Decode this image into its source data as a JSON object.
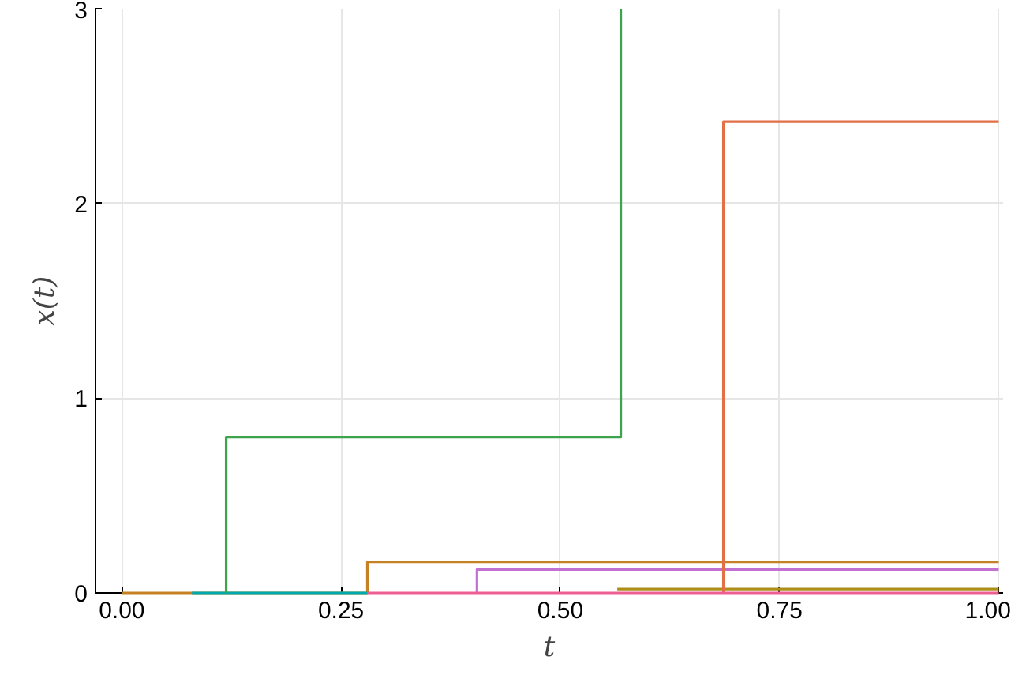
{
  "chart_data": {
    "type": "step",
    "xlabel": "t",
    "ylabel": "x(t)",
    "xlim": [
      -0.03,
      1.005
    ],
    "ylim": [
      0,
      3
    ],
    "xticks": [
      {
        "value": 0,
        "label": "0.00"
      },
      {
        "value": 0.25,
        "label": "0.25"
      },
      {
        "value": 0.5,
        "label": "0.50"
      },
      {
        "value": 0.75,
        "label": "0.75"
      },
      {
        "value": 1,
        "label": "1.00"
      }
    ],
    "yticks": [
      0,
      1,
      2,
      3
    ],
    "grid": true,
    "line_style": "solid",
    "marker": "none",
    "series": [
      {
        "color": "#c68125",
        "x": [
          0,
          0.28,
          1.0
        ],
        "values": [
          0,
          0.16,
          0.16
        ]
      },
      {
        "color": "#00a9ad",
        "x": [
          0.08,
          0.28
        ],
        "values": [
          0,
          0
        ]
      },
      {
        "color": "#c271d2",
        "x": [
          0.405,
          0.405,
          1.0
        ],
        "values": [
          0,
          0.12,
          0.12
        ]
      },
      {
        "color": "#ac8e18",
        "x": [
          0.565,
          1.0
        ],
        "values": [
          0.02,
          0.02
        ]
      },
      {
        "color": "#3da44d",
        "x": [
          0.119,
          0.119,
          0.569,
          0.569
        ],
        "values": [
          0,
          0.8,
          0.8,
          3
        ]
      },
      {
        "color": "#e26f46",
        "x": [
          0.686,
          0.686,
          1.0
        ],
        "values": [
          0,
          2.42,
          2.42
        ]
      },
      {
        "color": "#ed5e93",
        "x": [
          0.28,
          1.0
        ],
        "values": [
          0,
          0
        ]
      }
    ]
  }
}
